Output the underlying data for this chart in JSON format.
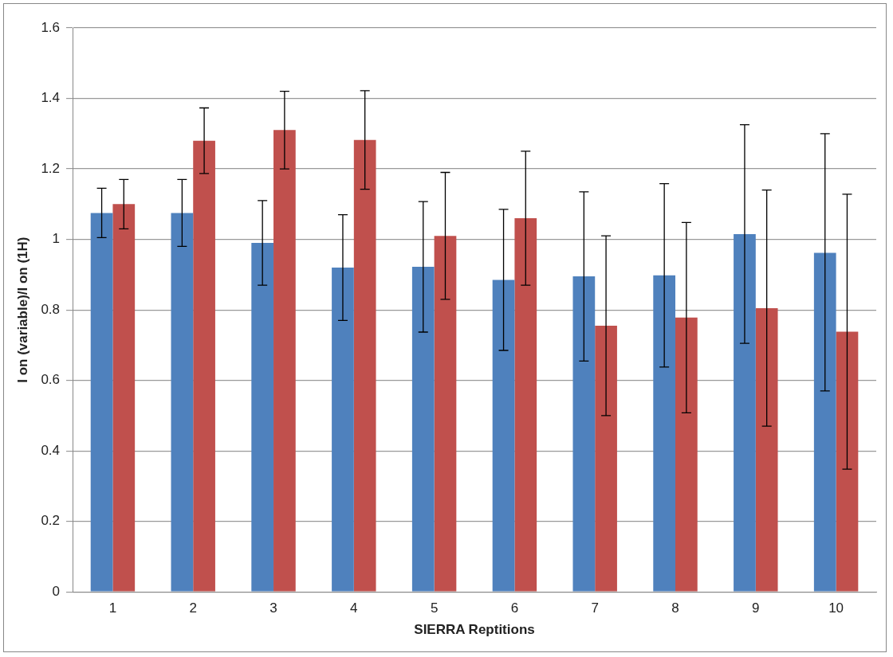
{
  "chart_data": {
    "type": "bar",
    "xlabel": "SIERRA Reptitions",
    "ylabel": "I on (variable)/I on (1H)",
    "categories": [
      "1",
      "2",
      "3",
      "4",
      "5",
      "6",
      "7",
      "8",
      "9",
      "10"
    ],
    "series": [
      {
        "color": "#4f81bd",
        "values": [
          1.075,
          1.075,
          0.99,
          0.92,
          0.922,
          0.885,
          0.895,
          0.898,
          1.015,
          0.962
        ],
        "errors": [
          0.07,
          0.095,
          0.12,
          0.15,
          0.185,
          0.2,
          0.24,
          0.26,
          0.31,
          [
            0.57,
            1.3
          ]
        ]
      },
      {
        "color": "#c0504d",
        "values": [
          1.1,
          1.28,
          1.31,
          1.282,
          1.01,
          1.06,
          0.755,
          0.778,
          0.805,
          0.738
        ],
        "errors": [
          0.07,
          0.093,
          0.11,
          0.14,
          0.18,
          0.19,
          0.255,
          0.27,
          0.335,
          0.39
        ]
      }
    ],
    "ylim": [
      0,
      1.6
    ],
    "yticks": [
      0,
      0.2,
      0.4,
      0.6,
      0.8,
      1,
      1.2,
      1.4,
      1.6
    ],
    "grid": "y",
    "legend": false
  }
}
